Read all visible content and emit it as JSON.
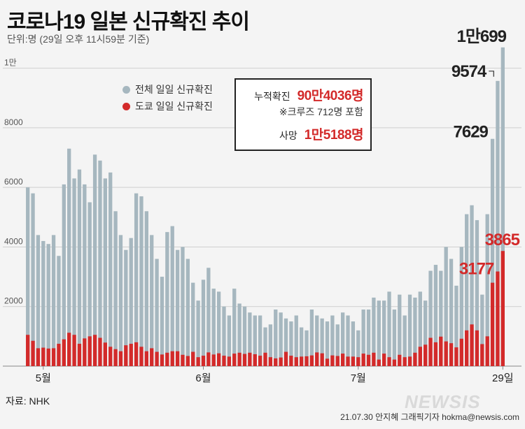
{
  "header": {
    "title": "코로나19 일본 신규확진 추이",
    "subtitle": "단위:명 (29일 오후 11시59분 기준)"
  },
  "legend": {
    "total": "전체 일일 신규확진",
    "tokyo": "도쿄 일일 신규확진"
  },
  "infobox": {
    "cumulative_label": "누적확진",
    "cumulative_value": "90만4036명",
    "note": "※크루즈 712명 포함",
    "deaths_label": "사망",
    "deaths_value": "1만5188명"
  },
  "footer": {
    "source": "자료: NHK",
    "credit": "21.07.30 안지혜 그래픽기자 hokma@newsis.com",
    "logo": "NEWSIS"
  },
  "colors": {
    "total": "#a6b7bf",
    "tokyo": "#d32a2a",
    "annotation_total": "#222222",
    "annotation_tokyo": "#d32a2a"
  },
  "chart_data": {
    "type": "bar",
    "ylim": [
      0,
      11000
    ],
    "yticks": [
      0,
      2000,
      4000,
      6000,
      8000,
      10000
    ],
    "ytick_labels": [
      "",
      "2000",
      "4000",
      "6000",
      "8000",
      "1만"
    ],
    "xtick_labels": [
      {
        "index": 3,
        "label": "5월"
      },
      {
        "index": 34,
        "label": "6월"
      },
      {
        "index": 64,
        "label": "7월"
      },
      {
        "index": 92,
        "label": "29일"
      }
    ],
    "series": [
      {
        "name": "전체 일일 신규확진",
        "values": [
          6000,
          5800,
          4400,
          4200,
          4100,
          4400,
          3700,
          6100,
          7300,
          6300,
          6600,
          6100,
          5500,
          7100,
          6900,
          6300,
          6500,
          5200,
          4400,
          3900,
          4300,
          5800,
          5700,
          5200,
          4400,
          3600,
          3000,
          4500,
          4700,
          3900,
          4000,
          3600,
          2800,
          2200,
          2900,
          3300,
          2600,
          2500,
          2000,
          1700,
          2600,
          2100,
          2000,
          1800,
          1700,
          1700,
          1300,
          1400,
          1900,
          1800,
          1600,
          1500,
          1700,
          1300,
          1200,
          1900,
          1700,
          1600,
          1500,
          1700,
          1400,
          1800,
          1700,
          1500,
          1200,
          1900,
          1900,
          2300,
          2200,
          2200,
          2500,
          1900,
          2400,
          1700,
          2400,
          2300,
          2500,
          2200,
          3200,
          3400,
          3200,
          4000,
          3600,
          2700,
          4000,
          5100,
          5400,
          4900,
          2400,
          5100,
          7629,
          9574,
          10699
        ]
      },
      {
        "name": "도쿄 일일 신규확진",
        "values": [
          1050,
          850,
          600,
          620,
          590,
          600,
          750,
          900,
          1120,
          1050,
          750,
          930,
          1000,
          1050,
          950,
          790,
          650,
          570,
          500,
          700,
          750,
          800,
          650,
          500,
          600,
          480,
          390,
          450,
          500,
          500,
          380,
          340,
          480,
          300,
          350,
          460,
          390,
          430,
          350,
          320,
          420,
          450,
          410,
          450,
          400,
          350,
          450,
          300,
          260,
          290,
          480,
          350,
          300,
          320,
          330,
          360,
          460,
          430,
          250,
          360,
          340,
          420,
          320,
          320,
          300,
          420,
          380,
          450,
          220,
          420,
          300,
          220,
          380,
          300,
          320,
          450,
          650,
          720,
          950,
          800,
          990,
          830,
          770,
          630,
          920,
          1200,
          1400,
          1200,
          740,
          1000,
          2800,
          3177,
          3865
        ]
      }
    ],
    "annotations": {
      "total": [
        {
          "index": 90,
          "label": "7629"
        },
        {
          "index": 91,
          "label": "9574"
        },
        {
          "index": 92,
          "label": "1만699"
        }
      ],
      "tokyo": [
        {
          "index": 91,
          "label": "3177"
        },
        {
          "index": 92,
          "label": "3865"
        }
      ]
    }
  }
}
